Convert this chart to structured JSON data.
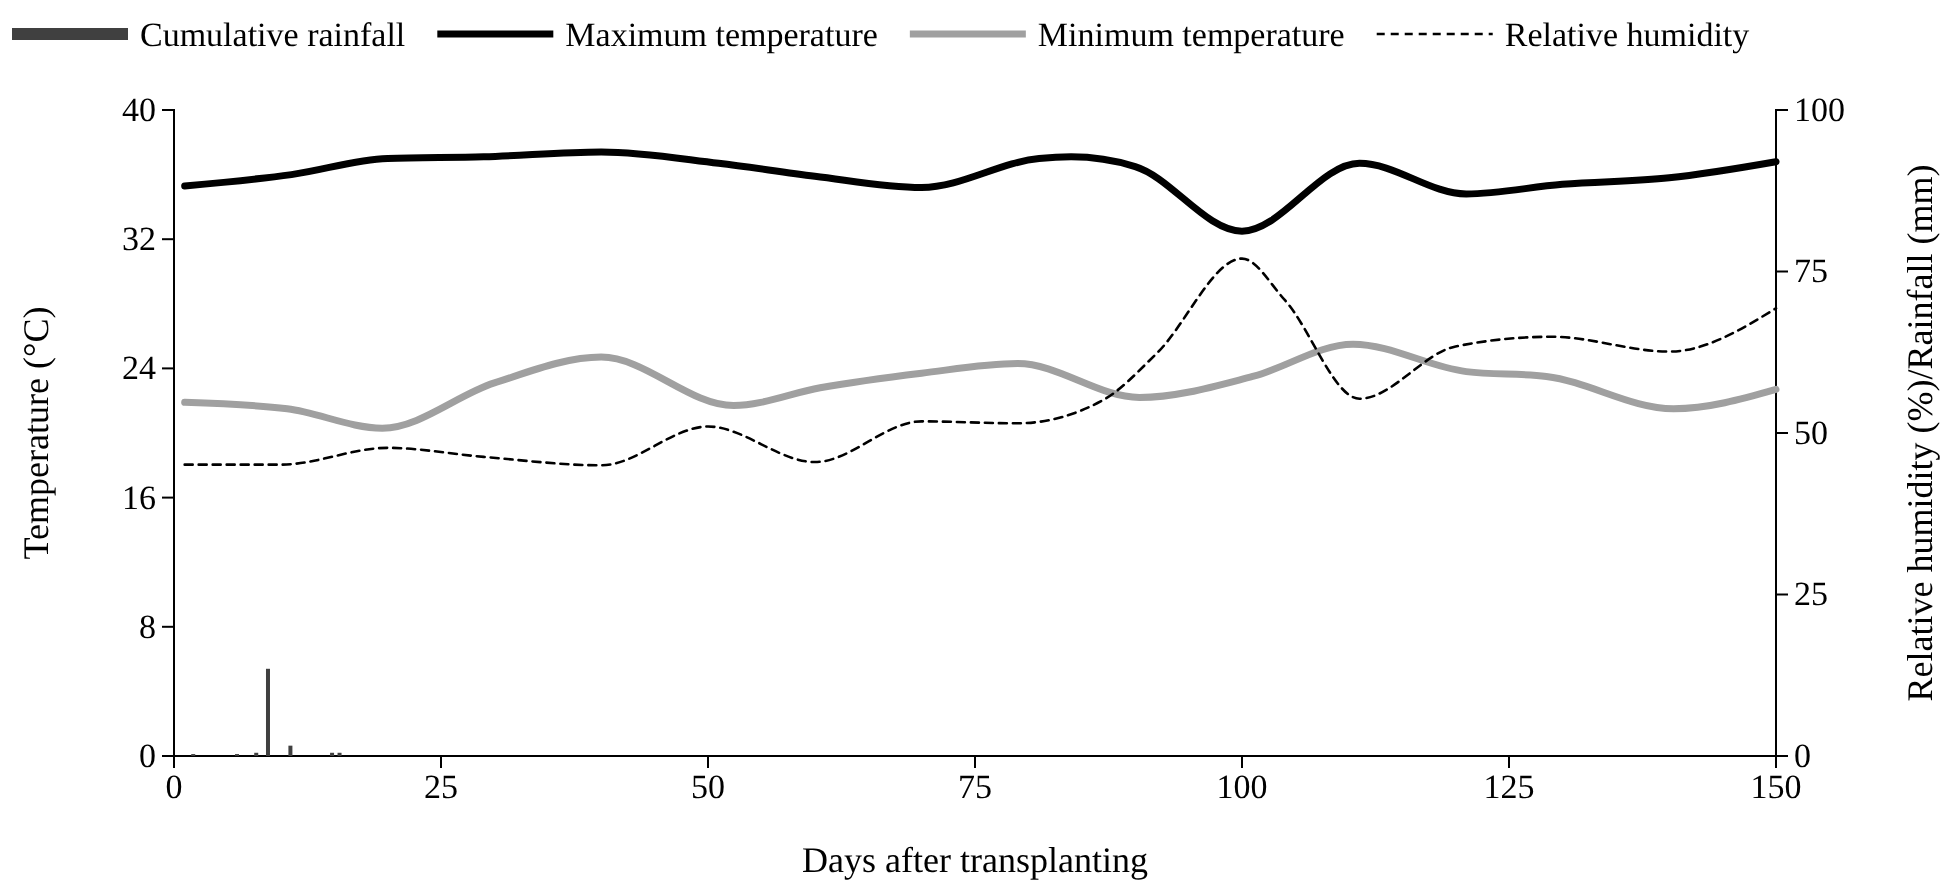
{
  "chart_data": {
    "type": "line",
    "xlabel": "Days after transplanting",
    "ylabel": "Temperature (°C)",
    "y2label": "Relative humidity (%)/Rainfall (mm)",
    "xlim": [
      0,
      150
    ],
    "xticks": [
      0,
      25,
      50,
      75,
      100,
      125,
      150
    ],
    "ylim": [
      0,
      40
    ],
    "yticks": [
      0,
      8,
      16,
      24,
      32,
      40
    ],
    "y2lim": [
      0,
      100
    ],
    "y2ticks": [
      0,
      25,
      50,
      75,
      100
    ],
    "legend": "top",
    "grid": false,
    "series": [
      {
        "name": "Cumulative rainfall",
        "type": "bar",
        "axis": "y2",
        "color": "#404040",
        "x": [
          1.8,
          5.9,
          7.7,
          8.8,
          10.9,
          14.8,
          15.5
        ],
        "values": [
          0.3,
          0.3,
          0.5,
          13.5,
          1.6,
          0.5,
          0.5
        ]
      },
      {
        "name": "Maximum temperature",
        "color": "#000000",
        "line_style": "solid",
        "x": [
          1,
          11,
          20,
          29,
          40,
          51,
          60,
          70,
          81,
          84,
          90,
          100,
          111,
          121,
          130,
          140,
          150
        ],
        "values": [
          35.3,
          36.0,
          37.0,
          37.1,
          37.4,
          36.7,
          35.9,
          35.2,
          37.0,
          37.1,
          36.5,
          32.5,
          36.7,
          34.8,
          35.4,
          35.8,
          36.8
        ]
      },
      {
        "name": "Minimum temperature",
        "color": "#a0a0a0",
        "line_style": "solid",
        "x": [
          1,
          10.6,
          19.5,
          30,
          40,
          52.4,
          60.5,
          70,
          79,
          90.4,
          101,
          110.4,
          121,
          128.5,
          140.4,
          150
        ],
        "values": [
          21.9,
          21.5,
          20.3,
          23.1,
          24.7,
          21.7,
          22.8,
          23.7,
          24.3,
          22.2,
          23.5,
          25.5,
          23.8,
          23.5,
          21.5,
          22.7
        ]
      },
      {
        "name": "Relative humidity",
        "axis": "y2",
        "color": "#000000",
        "line_style": "dashed",
        "x": [
          1,
          10,
          20,
          29,
          40,
          50,
          60,
          70,
          79,
          87,
          92,
          100,
          104,
          111,
          120,
          129,
          140,
          150
        ],
        "values": [
          45.1,
          45.1,
          47.7,
          46.3,
          45.0,
          51.0,
          45.5,
          51.8,
          51.5,
          55.1,
          62.3,
          77.0,
          70.6,
          55.3,
          63.4,
          64.9,
          62.6,
          69.3
        ]
      }
    ]
  }
}
